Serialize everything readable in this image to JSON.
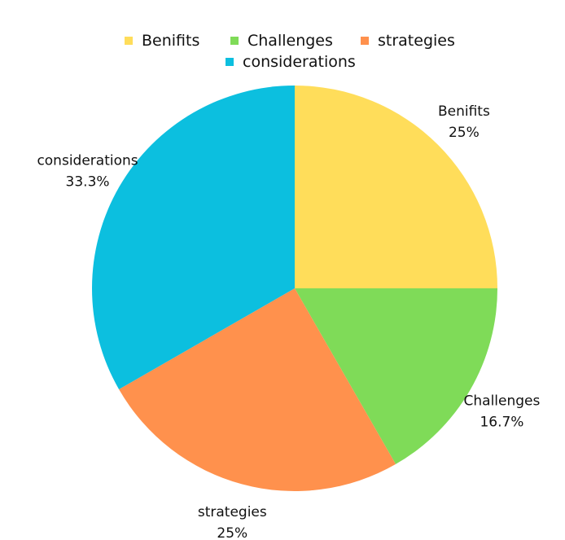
{
  "chart_data": {
    "type": "pie",
    "categories": [
      "Benifits",
      "Challenges",
      "strategies",
      "considerations"
    ],
    "values": [
      25,
      16.7,
      25,
      33.3
    ],
    "percent_labels": [
      "25%",
      "16.7%",
      "25%",
      "33.3%"
    ],
    "colors": [
      "#FFDD5A",
      "#7FDB58",
      "#FF914D",
      "#0CBFDF"
    ],
    "legend_position": "top",
    "start_angle": "12 o'clock",
    "direction": "clockwise"
  }
}
